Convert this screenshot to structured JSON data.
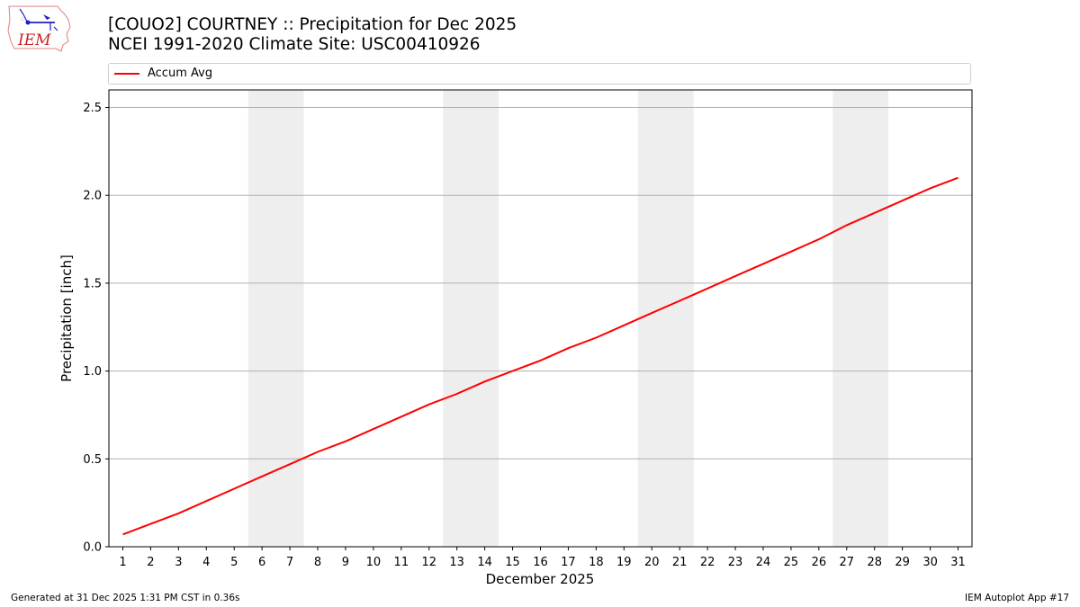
{
  "header": {
    "title_line1": "[COUO2] COURTNEY :: Precipitation for Dec 2025",
    "title_line2": "NCEI 1991-2020 Climate Site: USC00410926",
    "logo_text": "IEM"
  },
  "legend": {
    "items": [
      {
        "label": "Accum Avg",
        "color": "#ff0000"
      }
    ]
  },
  "footer": {
    "generated": "Generated at 31 Dec 2025 1:31 PM CST in 0.36s",
    "app": "IEM Autoplot App #17"
  },
  "chart_data": {
    "type": "line",
    "title": "[COUO2] COURTNEY :: Precipitation for Dec 2025",
    "subtitle": "NCEI 1991-2020 Climate Site: USC00410926",
    "xlabel": "December 2025",
    "ylabel": "Precipitation [inch]",
    "x": [
      1,
      2,
      3,
      4,
      5,
      6,
      7,
      8,
      9,
      10,
      11,
      12,
      13,
      14,
      15,
      16,
      17,
      18,
      19,
      20,
      21,
      22,
      23,
      24,
      25,
      26,
      27,
      28,
      29,
      30,
      31
    ],
    "series": [
      {
        "name": "Accum Avg",
        "color": "#ff0000",
        "values": [
          0.07,
          0.13,
          0.19,
          0.26,
          0.33,
          0.4,
          0.47,
          0.54,
          0.6,
          0.67,
          0.74,
          0.81,
          0.87,
          0.94,
          1.0,
          1.06,
          1.13,
          1.19,
          1.26,
          1.33,
          1.4,
          1.47,
          1.54,
          1.61,
          1.68,
          1.75,
          1.83,
          1.9,
          1.97,
          2.04,
          2.1
        ]
      }
    ],
    "ylim": [
      0,
      2.6
    ],
    "xlim": [
      0.5,
      31.5
    ],
    "yticks": [
      "0.0",
      "0.5",
      "1.0",
      "1.5",
      "2.0",
      "2.5"
    ],
    "xticks": [
      "1",
      "2",
      "3",
      "4",
      "5",
      "6",
      "7",
      "8",
      "9",
      "10",
      "11",
      "12",
      "13",
      "14",
      "15",
      "16",
      "17",
      "18",
      "19",
      "20",
      "21",
      "22",
      "23",
      "24",
      "25",
      "26",
      "27",
      "28",
      "29",
      "30",
      "31"
    ],
    "shaded_ranges": [
      [
        5.5,
        7.5
      ],
      [
        12.5,
        14.5
      ],
      [
        19.5,
        21.5
      ],
      [
        26.5,
        28.5
      ]
    ],
    "shade_color": "#eeeeee",
    "grid": "horizontal",
    "legend_position": "top"
  }
}
